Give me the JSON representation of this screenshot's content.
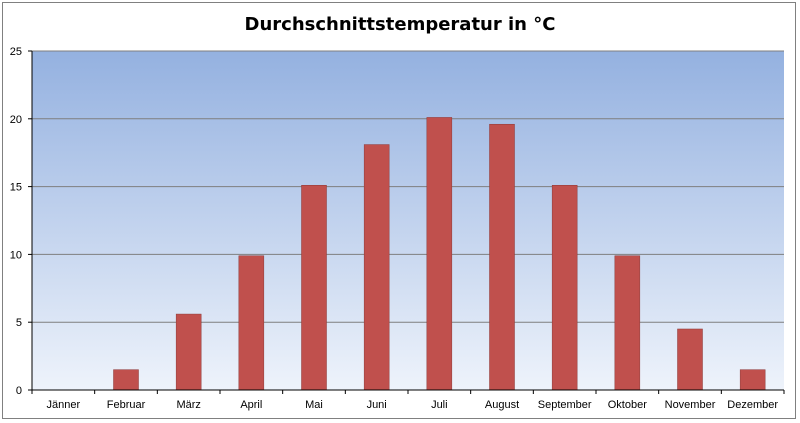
{
  "chart_data": {
    "type": "bar",
    "title": "Durchschnittstemperatur in °C",
    "xlabel": "",
    "ylabel": "",
    "categories": [
      "Jänner",
      "Februar",
      "März",
      "April",
      "Mai",
      "Juni",
      "Juli",
      "August",
      "September",
      "Oktober",
      "November",
      "Dezember"
    ],
    "values": [
      0,
      1.5,
      5.6,
      9.9,
      15.1,
      18.1,
      20.1,
      19.6,
      15.1,
      9.9,
      4.5,
      1.5
    ],
    "ylim": [
      0,
      25
    ],
    "yticks": [
      "0",
      "5",
      "10",
      "15",
      "20",
      "25"
    ],
    "grid": true,
    "legend": "none",
    "colors": {
      "bar": "#c0504d",
      "bar_edge": "#8c3836",
      "plot_bg_top": "#94b1e0",
      "plot_bg_bottom": "#eef3fb",
      "grid": "#7f7f7f"
    }
  }
}
